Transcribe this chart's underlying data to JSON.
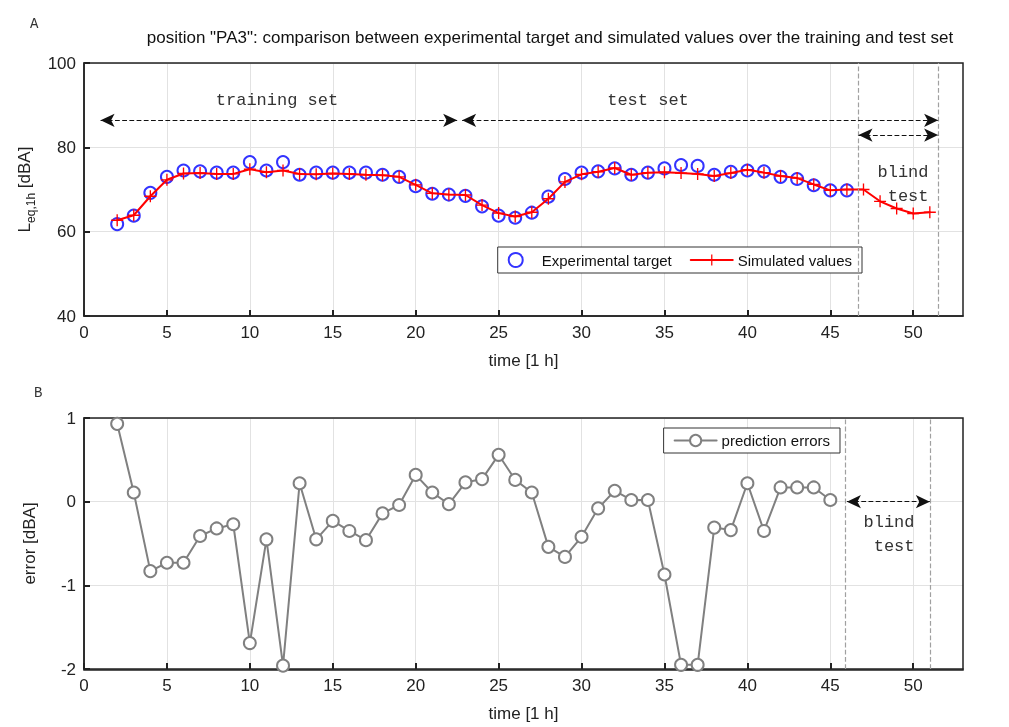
{
  "chart_data": [
    {
      "type": "line",
      "title": "position \"PA3\": comparison between experimental target and simulated values over the training and test set",
      "xlabel": "time [1 h]",
      "ylabel": "L$_{eq,1h}$ [dBA]",
      "xlim": [
        0,
        53
      ],
      "xticks": [
        0,
        5,
        10,
        15,
        20,
        25,
        30,
        35,
        40,
        45,
        50
      ],
      "ylim": [
        40,
        100
      ],
      "yticks": [
        40,
        60,
        80,
        100
      ],
      "grid": true,
      "legend": "bottom right",
      "series": [
        {
          "name": "Experimental target",
          "type": "scatter",
          "marker": "circle",
          "color": "#0000ff",
          "x": [
            2,
            3,
            4,
            5,
            6,
            7,
            8,
            9,
            10,
            11,
            12,
            13,
            14,
            15,
            16,
            17,
            18,
            19,
            20,
            21,
            22,
            23,
            24,
            25,
            26,
            27,
            28,
            29,
            30,
            31,
            32,
            33,
            34,
            35,
            36,
            37,
            38,
            39,
            40,
            41,
            42,
            43,
            44,
            45,
            46
          ],
          "values": [
            61.8,
            63.8,
            69.2,
            73.0,
            74.5,
            74.3,
            74.0,
            74.0,
            76.5,
            74.5,
            76.5,
            73.5,
            74.0,
            74.0,
            74.0,
            74.0,
            73.5,
            73.0,
            70.8,
            69.0,
            68.8,
            68.5,
            66.0,
            63.8,
            63.3,
            64.5,
            68.3,
            72.5,
            74.0,
            74.3,
            75.0,
            73.5,
            74.0,
            75.0,
            75.8,
            75.6,
            73.5,
            74.2,
            74.5,
            74.3,
            73.0,
            72.5,
            71.0,
            69.8,
            69.8
          ]
        },
        {
          "name": "Simulated values",
          "marker": "cross",
          "line_style": "solid",
          "color": "#ff0000",
          "x": [
            2,
            3,
            4,
            5,
            6,
            7,
            8,
            9,
            10,
            11,
            12,
            13,
            14,
            15,
            16,
            17,
            18,
            19,
            20,
            21,
            22,
            23,
            24,
            25,
            26,
            27,
            28,
            29,
            30,
            31,
            32,
            33,
            34,
            35,
            36,
            37,
            38,
            39,
            40,
            41,
            42,
            43,
            44,
            45,
            46,
            47,
            48,
            49,
            50,
            51
          ],
          "values": [
            62.7,
            63.9,
            68.4,
            72.3,
            73.8,
            73.9,
            73.7,
            73.7,
            74.8,
            74.1,
            74.5,
            73.7,
            73.6,
            73.8,
            73.7,
            73.5,
            73.4,
            73.0,
            71.1,
            69.1,
            68.8,
            68.7,
            66.3,
            64.4,
            63.6,
            64.6,
            67.8,
            71.8,
            73.6,
            74.2,
            75.1,
            73.5,
            74.0,
            74.1,
            73.9,
            73.7,
            73.2,
            73.9,
            74.7,
            74.0,
            73.2,
            72.7,
            71.2,
            69.8,
            70.0,
            70.0,
            67.2,
            65.5,
            64.3,
            64.6
          ]
        }
      ],
      "ref_lines": [
        {
          "axis": "x",
          "value": 46.7,
          "label": null,
          "color": "#a0a0a0",
          "line_style": "dashed"
        },
        {
          "axis": "x",
          "value": 51.5,
          "label": null,
          "color": "#a0a0a0",
          "line_style": "dashed"
        }
      ],
      "annotations": [
        "A",
        "training set",
        "test set",
        "blind test"
      ]
    },
    {
      "type": "line",
      "xlabel": "time [1 h]",
      "ylabel": "error [dBA]",
      "xlim": [
        0,
        53
      ],
      "xticks": [
        0,
        5,
        10,
        15,
        20,
        25,
        30,
        35,
        40,
        45,
        50
      ],
      "ylim": [
        -2,
        1
      ],
      "yticks": [
        -2,
        -1,
        0,
        1
      ],
      "grid": true,
      "legend": "top right",
      "series": [
        {
          "name": "prediction errors",
          "marker": "circle",
          "line_style": "solid",
          "color": "#808080",
          "x": [
            2,
            3,
            4,
            5,
            6,
            7,
            8,
            9,
            10,
            11,
            12,
            13,
            14,
            15,
            16,
            17,
            18,
            19,
            20,
            21,
            22,
            23,
            24,
            25,
            26,
            27,
            28,
            29,
            30,
            31,
            32,
            33,
            34,
            35,
            36,
            37,
            38,
            39,
            40,
            41,
            42,
            43,
            44,
            45
          ],
          "values": [
            0.93,
            0.11,
            -0.83,
            -0.73,
            -0.73,
            -0.41,
            -0.32,
            -0.27,
            -1.69,
            -0.45,
            -1.96,
            0.22,
            -0.45,
            -0.23,
            -0.35,
            -0.46,
            -0.14,
            -0.04,
            0.32,
            0.11,
            -0.03,
            0.23,
            0.27,
            0.56,
            0.26,
            0.11,
            -0.54,
            -0.66,
            -0.42,
            -0.08,
            0.13,
            0.02,
            0.02,
            -0.87,
            -1.95,
            -1.95,
            -0.31,
            -0.34,
            0.22,
            -0.35,
            0.17,
            0.17,
            0.17,
            0.02
          ]
        }
      ],
      "ref_lines": [
        {
          "axis": "x",
          "value": 45.9,
          "label": null,
          "color": "#a0a0a0",
          "line_style": "dashed"
        },
        {
          "axis": "x",
          "value": 51.0,
          "label": null,
          "color": "#a0a0a0",
          "line_style": "dashed"
        }
      ],
      "annotations": [
        "B",
        "blind test"
      ]
    }
  ]
}
